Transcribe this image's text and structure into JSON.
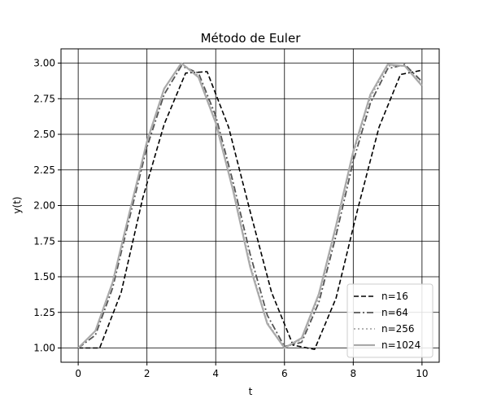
{
  "chart_data": {
    "type": "line",
    "title": "Método de Euler",
    "xlabel": "t",
    "ylabel": "y(t)",
    "xlim": [
      -0.5,
      10.5
    ],
    "ylim": [
      0.9,
      3.1
    ],
    "xticks": [
      0,
      2,
      4,
      6,
      8,
      10
    ],
    "yticks": [
      1.0,
      1.25,
      1.5,
      1.75,
      2.0,
      2.25,
      2.5,
      2.75,
      3.0
    ],
    "xtick_labels": [
      "0",
      "2",
      "4",
      "6",
      "8",
      "10"
    ],
    "ytick_labels": [
      "1.00",
      "1.25",
      "1.50",
      "1.75",
      "2.00",
      "2.25",
      "2.50",
      "2.75",
      "3.00"
    ],
    "grid": true,
    "legend_position": "lower-right",
    "series": [
      {
        "name": "n=16",
        "color": "#000000",
        "style": "dashed",
        "x": [
          0,
          0.625,
          1.25,
          1.875,
          2.5,
          3.125,
          3.75,
          4.375,
          5.0,
          5.625,
          6.25,
          6.875,
          7.5,
          8.125,
          8.75,
          9.375,
          10.0
        ],
        "y": [
          1.0,
          1.0,
          1.39,
          2.05,
          2.57,
          2.93,
          2.94,
          2.55,
          1.96,
          1.39,
          1.02,
          0.99,
          1.35,
          1.97,
          2.55,
          2.92,
          2.95
        ]
      },
      {
        "name": "n=64",
        "color": "#555555",
        "style": "dashdot",
        "x": [
          0,
          0.5,
          1.0,
          1.5,
          2.0,
          2.5,
          3.0,
          3.5,
          4.0,
          4.5,
          5.0,
          5.5,
          6.0,
          6.5,
          7.0,
          7.5,
          8.0,
          8.5,
          9.0,
          9.5,
          10.0
        ],
        "y": [
          1.0,
          1.09,
          1.42,
          1.92,
          2.41,
          2.78,
          2.98,
          2.93,
          2.63,
          2.17,
          1.66,
          1.23,
          1.01,
          1.04,
          1.32,
          1.79,
          2.31,
          2.72,
          2.96,
          2.99,
          2.87
        ]
      },
      {
        "name": "n=256",
        "color": "#999999",
        "style": "dotted",
        "x": [
          0,
          0.5,
          1.0,
          1.5,
          2.0,
          2.5,
          3.0,
          3.5,
          4.0,
          4.5,
          5.0,
          5.5,
          6.0,
          6.5,
          7.0,
          7.5,
          8.0,
          8.5,
          9.0,
          9.5,
          10.0
        ],
        "y": [
          1.0,
          1.12,
          1.46,
          1.96,
          2.44,
          2.82,
          3.0,
          2.91,
          2.6,
          2.13,
          1.59,
          1.18,
          1.0,
          1.06,
          1.36,
          1.84,
          2.36,
          2.76,
          2.98,
          2.98,
          2.85
        ]
      },
      {
        "name": "n=1024",
        "color": "#aaaaaa",
        "style": "solid",
        "x": [
          0,
          0.5,
          1.0,
          1.5,
          2.0,
          2.5,
          3.0,
          3.5,
          4.0,
          4.5,
          5.0,
          5.5,
          6.0,
          6.5,
          7.0,
          7.5,
          8.0,
          8.5,
          9.0,
          9.5,
          10.0
        ],
        "y": [
          1.0,
          1.12,
          1.46,
          1.96,
          2.45,
          2.82,
          3.0,
          2.9,
          2.58,
          2.11,
          1.57,
          1.17,
          1.0,
          1.07,
          1.38,
          1.86,
          2.38,
          2.78,
          2.99,
          2.98,
          2.84
        ]
      }
    ]
  }
}
